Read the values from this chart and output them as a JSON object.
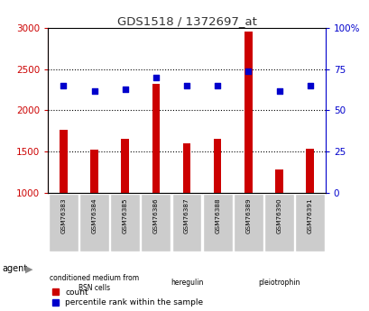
{
  "title": "GDS1518 / 1372697_at",
  "samples": [
    "GSM76383",
    "GSM76384",
    "GSM76385",
    "GSM76386",
    "GSM76387",
    "GSM76388",
    "GSM76389",
    "GSM76390",
    "GSM76391"
  ],
  "counts": [
    1760,
    1520,
    1650,
    2320,
    1600,
    1660,
    2960,
    1280,
    1540
  ],
  "percentiles": [
    65,
    62,
    63,
    70,
    65,
    65,
    74,
    62,
    65
  ],
  "ylim_left": [
    1000,
    3000
  ],
  "ylim_right": [
    0,
    100
  ],
  "yticks_left": [
    1000,
    1500,
    2000,
    2500,
    3000
  ],
  "yticks_right": [
    0,
    25,
    50,
    75,
    100
  ],
  "bar_color": "#cc0000",
  "dot_color": "#0000cc",
  "agent_groups": [
    {
      "label": "conditioned medium from\nBSN cells",
      "start": 0,
      "end": 3,
      "color": "#ccffcc"
    },
    {
      "label": "heregulin",
      "start": 3,
      "end": 6,
      "color": "#99ee99"
    },
    {
      "label": "pleiotrophin",
      "start": 6,
      "end": 9,
      "color": "#66cc66"
    }
  ],
  "ylabel_left_color": "#cc0000",
  "ylabel_right_color": "#0000cc",
  "title_color": "#333333",
  "background_color": "#ffffff",
  "tick_label_bg": "#cccccc"
}
